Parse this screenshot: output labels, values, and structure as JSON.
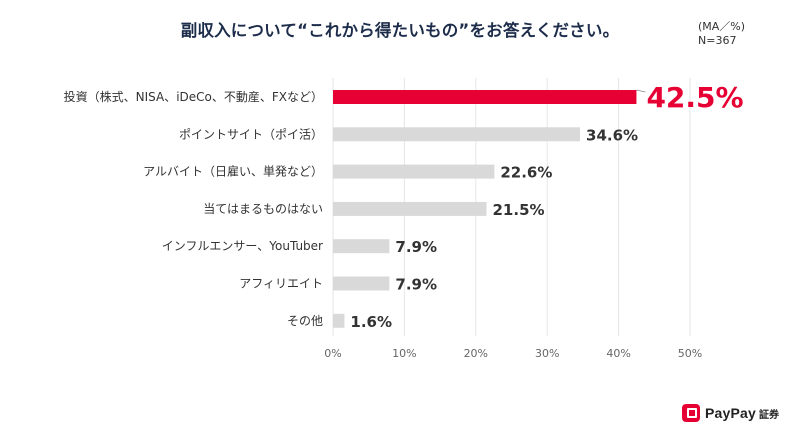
{
  "chart_data": {
    "type": "bar",
    "orientation": "horizontal",
    "title": "副収入について“これから得たいもの”をお答えください。",
    "note_lines": [
      "(MA／%)",
      "N=367"
    ],
    "categories": [
      "投資（株式、NISA、iDeCo、不動産、FXなど）",
      "ポイントサイト（ポイ活）",
      "アルバイト（日雇い、単発など）",
      "当てはまるものはない",
      "インフルエンサー、YouTuber",
      "アフィリエイト",
      "その他"
    ],
    "values": [
      42.5,
      34.6,
      22.6,
      21.5,
      7.9,
      7.9,
      1.6
    ],
    "value_labels": [
      "42.5%",
      "34.6%",
      "22.6%",
      "21.5%",
      "7.9%",
      "7.9%",
      "1.6%"
    ],
    "xlim": [
      0,
      50
    ],
    "x_ticks": [
      0,
      10,
      20,
      30,
      40,
      50
    ],
    "x_tick_labels": [
      "0%",
      "10%",
      "20%",
      "30%",
      "40%",
      "50%"
    ],
    "grid": "vertical",
    "highlight_index": 0,
    "colors": {
      "highlight": "#e60033",
      "bar": "#d9d9d9",
      "grid": "#e6e6e6",
      "text": "#333333"
    }
  },
  "brand": {
    "name": "PayPay",
    "sub": "証券",
    "color": "#e60033"
  }
}
